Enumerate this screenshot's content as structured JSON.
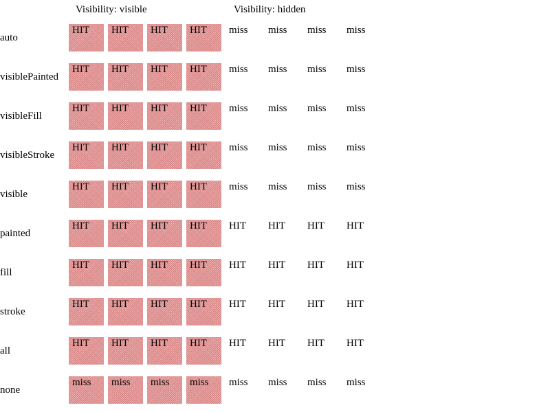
{
  "headers": {
    "visible": "Visibility: visible",
    "hidden": "Visibility: hidden"
  },
  "colors": {
    "hatch_fill": "#f7bcbc",
    "hatch_line": "#c86e6e"
  },
  "rows": [
    {
      "label": "auto",
      "visible": [
        "HIT",
        "HIT",
        "HIT",
        "HIT"
      ],
      "hidden": [
        "miss",
        "miss",
        "miss",
        "miss"
      ]
    },
    {
      "label": "visiblePainted",
      "visible": [
        "HIT",
        "HIT",
        "HIT",
        "HIT"
      ],
      "hidden": [
        "miss",
        "miss",
        "miss",
        "miss"
      ]
    },
    {
      "label": "visibleFill",
      "visible": [
        "HIT",
        "HIT",
        "HIT",
        "HIT"
      ],
      "hidden": [
        "miss",
        "miss",
        "miss",
        "miss"
      ]
    },
    {
      "label": "visibleStroke",
      "visible": [
        "HIT",
        "HIT",
        "HIT",
        "HIT"
      ],
      "hidden": [
        "miss",
        "miss",
        "miss",
        "miss"
      ]
    },
    {
      "label": "visible",
      "visible": [
        "HIT",
        "HIT",
        "HIT",
        "HIT"
      ],
      "hidden": [
        "miss",
        "miss",
        "miss",
        "miss"
      ]
    },
    {
      "label": "painted",
      "visible": [
        "HIT",
        "HIT",
        "HIT",
        "HIT"
      ],
      "hidden": [
        "HIT",
        "HIT",
        "HIT",
        "HIT"
      ]
    },
    {
      "label": "fill",
      "visible": [
        "HIT",
        "HIT",
        "HIT",
        "HIT"
      ],
      "hidden": [
        "HIT",
        "HIT",
        "HIT",
        "HIT"
      ]
    },
    {
      "label": "stroke",
      "visible": [
        "HIT",
        "HIT",
        "HIT",
        "HIT"
      ],
      "hidden": [
        "HIT",
        "HIT",
        "HIT",
        "HIT"
      ]
    },
    {
      "label": "all",
      "visible": [
        "HIT",
        "HIT",
        "HIT",
        "HIT"
      ],
      "hidden": [
        "HIT",
        "HIT",
        "HIT",
        "HIT"
      ]
    },
    {
      "label": "none",
      "visible": [
        "miss",
        "miss",
        "miss",
        "miss"
      ],
      "hidden": [
        "miss",
        "miss",
        "miss",
        "miss"
      ]
    }
  ]
}
